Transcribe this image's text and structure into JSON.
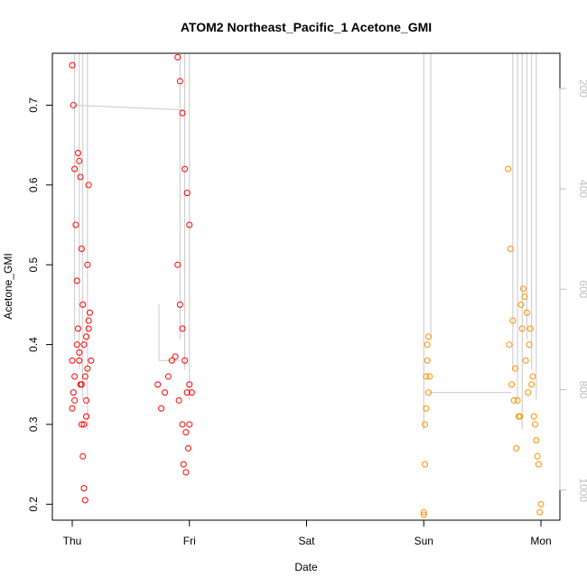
{
  "chart_data": {
    "type": "scatter",
    "title": "ATOM2 Northeast_Pacific_1 Acetone_GMI",
    "xlabel": "Date",
    "ylabel": "Acetone_GMI",
    "x_ticks": [
      "Thu",
      "Fri",
      "Sat",
      "Sun",
      "Mon"
    ],
    "x_range_days": [
      -0.2,
      4.18
    ],
    "y_ticks": [
      0.2,
      0.3,
      0.4,
      0.5,
      0.6,
      0.7
    ],
    "ylim": [
      0.18,
      0.765
    ],
    "y2_ticks": [
      200,
      400,
      600,
      800,
      1000
    ],
    "y2lim": [
      1060,
      130
    ],
    "grid": false,
    "colors": {
      "red": "#ff0000",
      "orange": "#ff8c00",
      "gray": "#c8c8c8",
      "axis": "#000000"
    },
    "series": [
      {
        "color": "red",
        "x": [
          0.0,
          0.01,
          0.02,
          0.03,
          0.04,
          0.05,
          0.06,
          0.07,
          0.08,
          0.09,
          0.1,
          0.11,
          0.12,
          0.13,
          0.14,
          0.15,
          0.0,
          0.01,
          0.02,
          0.05,
          0.06,
          0.07,
          0.08,
          0.09,
          0.1,
          0.11,
          0.12,
          0.13,
          0.14,
          0.0,
          0.02,
          0.04,
          0.06,
          0.08,
          0.1,
          0.12,
          0.14,
          0.16,
          0.73,
          0.76,
          0.79,
          0.82,
          0.85,
          0.88,
          0.91,
          0.94,
          0.97,
          1.0,
          1.02,
          0.9,
          0.92,
          0.94,
          0.96,
          0.98,
          1.0,
          0.9,
          0.92,
          0.94,
          0.96,
          0.98,
          1.0,
          0.95,
          0.97,
          0.99
        ],
        "y": [
          0.75,
          0.7,
          0.62,
          0.55,
          0.48,
          0.42,
          0.38,
          0.35,
          0.3,
          0.26,
          0.22,
          0.205,
          0.31,
          0.37,
          0.42,
          0.44,
          0.32,
          0.34,
          0.33,
          0.64,
          0.63,
          0.61,
          0.52,
          0.45,
          0.4,
          0.36,
          0.33,
          0.5,
          0.6,
          0.38,
          0.36,
          0.4,
          0.39,
          0.35,
          0.3,
          0.41,
          0.43,
          0.38,
          0.35,
          0.32,
          0.34,
          0.36,
          0.38,
          0.385,
          0.33,
          0.3,
          0.29,
          0.35,
          0.34,
          0.76,
          0.73,
          0.69,
          0.62,
          0.59,
          0.55,
          0.5,
          0.45,
          0.42,
          0.38,
          0.34,
          0.3,
          0.25,
          0.24,
          0.27
        ]
      },
      {
        "color": "orange",
        "x": [
          3.0,
          3.01,
          3.02,
          3.03,
          3.04,
          3.05,
          3.0,
          3.01,
          3.02,
          3.03,
          3.04,
          3.72,
          3.74,
          3.76,
          3.78,
          3.8,
          3.82,
          3.84,
          3.86,
          3.88,
          3.9,
          3.92,
          3.94,
          3.96,
          3.98,
          4.0,
          3.73,
          3.75,
          3.77,
          3.79,
          3.81,
          3.83,
          3.85,
          3.87,
          3.89,
          3.91,
          3.93,
          3.95,
          3.97,
          3.99
        ],
        "y": [
          0.19,
          0.25,
          0.32,
          0.38,
          0.41,
          0.36,
          0.187,
          0.3,
          0.36,
          0.4,
          0.34,
          0.62,
          0.52,
          0.43,
          0.37,
          0.33,
          0.31,
          0.42,
          0.46,
          0.44,
          0.4,
          0.35,
          0.31,
          0.28,
          0.25,
          0.2,
          0.4,
          0.35,
          0.33,
          0.27,
          0.31,
          0.45,
          0.47,
          0.38,
          0.34,
          0.42,
          0.36,
          0.3,
          0.26,
          0.19
        ]
      }
    ]
  }
}
